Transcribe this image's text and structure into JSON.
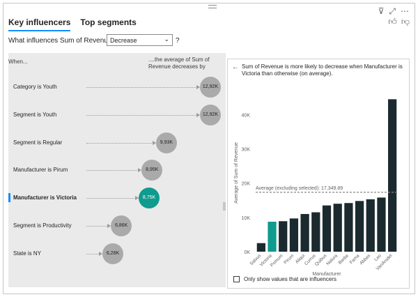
{
  "tabs": [
    {
      "label": "Key influencers",
      "active": true
    },
    {
      "label": "Top segments",
      "active": false
    }
  ],
  "icons": {
    "filter": "filter-icon",
    "focus": "focus-mode-icon",
    "more": "more-options-icon",
    "like": "thumbs-up-icon",
    "dislike": "thumbs-down-icon",
    "back": "back-arrow-icon"
  },
  "question": {
    "prefix": "What influences Sum of Revenue to",
    "selected": "Decrease",
    "help": "?"
  },
  "columns": {
    "when": "When...",
    "avg": "....the average of Sum of Revenue decreases by"
  },
  "influencers": [
    {
      "label": "Category is Youth",
      "value": "12,92K",
      "amount": 12.92,
      "selected": false
    },
    {
      "label": "Segment is Youth",
      "value": "12,92K",
      "amount": 12.92,
      "selected": false
    },
    {
      "label": "Segment is Regular",
      "value": "9,93K",
      "amount": 9.93,
      "selected": false
    },
    {
      "label": "Manufacturer is Pirum",
      "value": "8,95K",
      "amount": 8.95,
      "selected": false
    },
    {
      "label": "Manufacturer is Victoria",
      "value": "8,75K",
      "amount": 8.75,
      "selected": true
    },
    {
      "label": "Segment is Productivity",
      "value": "6,86K",
      "amount": 6.86,
      "selected": false
    },
    {
      "label": "State is NY",
      "value": "6,28K",
      "amount": 6.28,
      "selected": false
    }
  ],
  "detail": {
    "description": "Sum of Revenue is more likely to decrease when Manufacturer is Victoria than otherwise (on average).",
    "checkbox_label": "Only show values that are influencers"
  },
  "colors": {
    "selected": "#0f9b8e",
    "bar": "#1b2a2f",
    "bubble": "#aaaaaa"
  },
  "chart_data": {
    "type": "bar",
    "categories": [
      "Salvus",
      "Victoria",
      "Pomum",
      "Pirum",
      "Aliqui",
      "Currus",
      "Quibus",
      "Natura",
      "Barba",
      "Fama",
      "Abbas",
      "Leo",
      "VanArsdel"
    ],
    "values": [
      2500,
      8750,
      8900,
      9700,
      11000,
      11500,
      13500,
      14000,
      14200,
      14800,
      15300,
      15800,
      44500
    ],
    "highlight": "Victoria",
    "xlabel": "Manufacturer",
    "ylabel": "Average of Sum of Revenue",
    "yticks": [
      "0K",
      "10K",
      "20K",
      "30K",
      "40K"
    ],
    "ylim": [
      0,
      46000
    ],
    "average_line": {
      "label": "Average (excluding selected): 17,349.89",
      "value": 17349.89
    }
  }
}
